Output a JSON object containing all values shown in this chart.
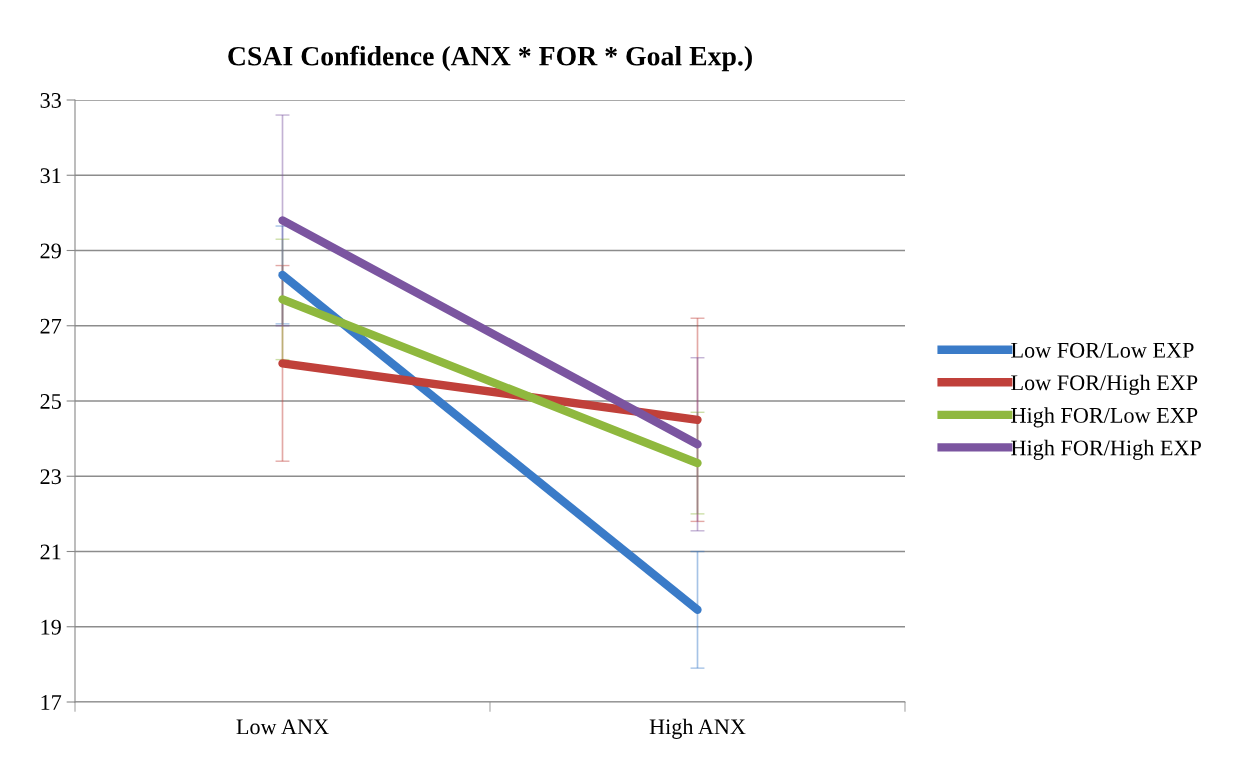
{
  "chart_data": {
    "type": "line",
    "title": "CSAI Confidence (ANX * FOR * Goal Exp.)",
    "categories": [
      "Low ANX",
      "High ANX"
    ],
    "series": [
      {
        "name": "Low FOR/Low EXP",
        "color": "#3a7bc8",
        "values": [
          28.35,
          19.45
        ],
        "errors": [
          1.3,
          1.55
        ]
      },
      {
        "name": "Low FOR/High EXP",
        "color": "#c0403a",
        "values": [
          26.0,
          24.5
        ],
        "errors": [
          2.6,
          2.7
        ]
      },
      {
        "name": "High FOR/Low EXP",
        "color": "#8fb83e",
        "values": [
          27.7,
          23.35
        ],
        "errors": [
          1.6,
          1.35
        ]
      },
      {
        "name": "High FOR/High EXP",
        "color": "#7b55a0",
        "values": [
          29.8,
          23.85
        ],
        "errors": [
          2.8,
          2.3
        ]
      }
    ],
    "ylim": [
      17,
      33
    ],
    "yticks": [
      17,
      19,
      21,
      23,
      25,
      27,
      29,
      31,
      33
    ],
    "grid": "y",
    "legend": "right",
    "marker": "none",
    "line_style": "solid"
  }
}
